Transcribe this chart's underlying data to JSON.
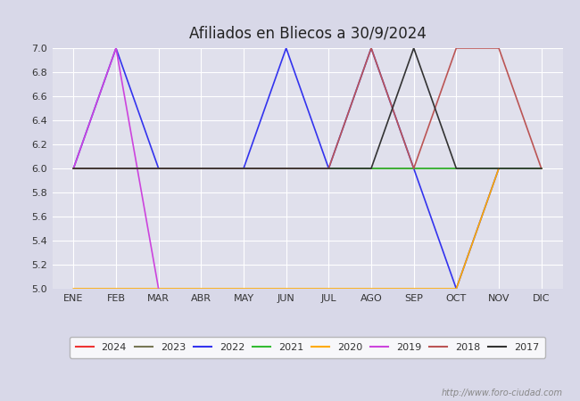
{
  "title": "Afiliados en Bliecos a 30/9/2024",
  "months": [
    "ENE",
    "FEB",
    "MAR",
    "ABR",
    "MAY",
    "JUN",
    "JUL",
    "AGO",
    "SEP",
    "OCT",
    "NOV",
    "DIC"
  ],
  "ylim": [
    5.0,
    7.0
  ],
  "yticks": [
    5.0,
    5.2,
    5.4,
    5.6,
    5.8,
    6.0,
    6.2,
    6.4,
    6.6,
    6.8,
    7.0
  ],
  "bg_color": "#d8d8e8",
  "plot_bg_color": "#e0e0ec",
  "title_color": "#222222",
  "watermark": "http://www.foro-ciudad.com",
  "series": [
    {
      "label": "2024",
      "color": "#ee3333",
      "data": [
        6.0,
        6.0,
        6.0,
        6.0,
        6.0,
        6.0,
        6.0,
        6.0,
        6.0,
        null,
        null,
        null
      ]
    },
    {
      "label": "2023",
      "color": "#777755",
      "data": [
        6.0,
        6.0,
        6.0,
        6.0,
        6.0,
        6.0,
        6.0,
        6.0,
        6.0,
        6.0,
        6.0,
        6.0
      ]
    },
    {
      "label": "2022",
      "color": "#3333ee",
      "data": [
        6.0,
        7.0,
        6.0,
        6.0,
        6.0,
        7.0,
        6.0,
        7.0,
        6.0,
        5.0,
        6.0,
        null
      ]
    },
    {
      "label": "2021",
      "color": "#33bb33",
      "data": [
        6.0,
        6.0,
        6.0,
        6.0,
        6.0,
        6.0,
        6.0,
        6.0,
        6.0,
        6.0,
        6.0,
        6.0
      ]
    },
    {
      "label": "2020",
      "color": "#ffaa00",
      "data": [
        5.0,
        5.0,
        5.0,
        5.0,
        5.0,
        5.0,
        5.0,
        5.0,
        5.0,
        5.0,
        6.0,
        null
      ]
    },
    {
      "label": "2019",
      "color": "#cc44dd",
      "data": [
        6.0,
        7.0,
        5.0,
        null,
        null,
        null,
        null,
        null,
        null,
        null,
        null,
        null
      ]
    },
    {
      "label": "2018",
      "color": "#bb5555",
      "data": [
        6.0,
        6.0,
        6.0,
        6.0,
        6.0,
        6.0,
        6.0,
        7.0,
        6.0,
        7.0,
        7.0,
        6.0
      ]
    },
    {
      "label": "2017",
      "color": "#333333",
      "data": [
        6.0,
        6.0,
        6.0,
        6.0,
        6.0,
        6.0,
        6.0,
        6.0,
        7.0,
        6.0,
        6.0,
        6.0
      ]
    }
  ]
}
